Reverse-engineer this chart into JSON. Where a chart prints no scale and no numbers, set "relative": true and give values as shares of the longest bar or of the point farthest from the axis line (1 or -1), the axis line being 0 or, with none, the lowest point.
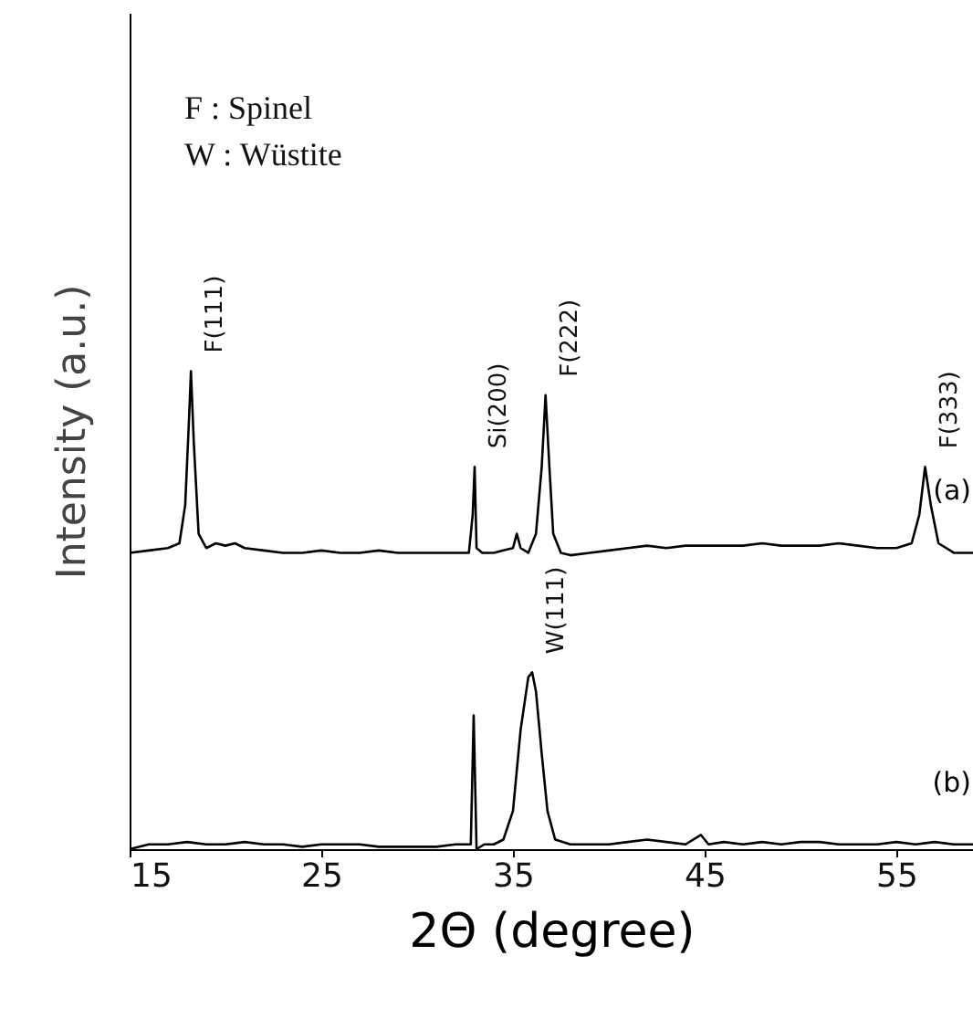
{
  "chart_data": {
    "type": "line",
    "relative": true,
    "xlabel": "2Θ (degree)",
    "ylabel": "Intensity (a.u.)",
    "xlim": [
      15,
      59
    ],
    "xticks": [
      15,
      25,
      35,
      45,
      55
    ],
    "series": [
      {
        "name": "(a)",
        "color": "#000000",
        "x": [
          15,
          16,
          17,
          17.6,
          17.9,
          18.1,
          18.2,
          18.35,
          18.6,
          19,
          19.5,
          20,
          20.5,
          21,
          22,
          23,
          24,
          25,
          26,
          27,
          28,
          29,
          30,
          31,
          32,
          32.7,
          32.9,
          33.0,
          33.1,
          33.4,
          34,
          34.5,
          35.0,
          35.2,
          35.4,
          35.8,
          36.2,
          36.5,
          36.7,
          36.9,
          37.1,
          37.5,
          38,
          39,
          40,
          41,
          42,
          43,
          44,
          45,
          46,
          47,
          48,
          49,
          50,
          51,
          52,
          53,
          54,
          55,
          55.8,
          56.2,
          56.5,
          56.8,
          57.2,
          58,
          59
        ],
        "values": [
          0.62,
          0.625,
          0.63,
          0.64,
          0.72,
          0.9,
          1.0,
          0.85,
          0.66,
          0.63,
          0.64,
          0.635,
          0.64,
          0.63,
          0.625,
          0.62,
          0.62,
          0.625,
          0.62,
          0.62,
          0.625,
          0.62,
          0.62,
          0.62,
          0.62,
          0.62,
          0.7,
          0.8,
          0.63,
          0.62,
          0.62,
          0.625,
          0.63,
          0.66,
          0.63,
          0.62,
          0.66,
          0.8,
          0.95,
          0.8,
          0.66,
          0.62,
          0.615,
          0.62,
          0.625,
          0.63,
          0.635,
          0.63,
          0.635,
          0.635,
          0.635,
          0.635,
          0.64,
          0.635,
          0.635,
          0.635,
          0.64,
          0.635,
          0.63,
          0.63,
          0.64,
          0.7,
          0.8,
          0.72,
          0.64,
          0.62,
          0.62
        ]
      },
      {
        "name": "(b)",
        "color": "#000000",
        "x": [
          15,
          16,
          17,
          18,
          19,
          20,
          21,
          22,
          23,
          24,
          25,
          26,
          27,
          28,
          29,
          30,
          31,
          32,
          32.8,
          32.95,
          33.1,
          33.5,
          34,
          34.5,
          35,
          35.4,
          35.8,
          36.0,
          36.2,
          36.5,
          36.8,
          37.2,
          38,
          39,
          40,
          41,
          42,
          43,
          44,
          44.8,
          45.2,
          46,
          47,
          48,
          49,
          50,
          51,
          52,
          53,
          54,
          55,
          56,
          57,
          58,
          59
        ],
        "values": [
          0.0,
          0.01,
          0.01,
          0.015,
          0.01,
          0.01,
          0.015,
          0.01,
          0.01,
          0.005,
          0.01,
          0.01,
          0.01,
          0.005,
          0.005,
          0.005,
          0.005,
          0.01,
          0.01,
          0.28,
          0.0,
          0.01,
          0.01,
          0.02,
          0.08,
          0.25,
          0.36,
          0.37,
          0.33,
          0.2,
          0.08,
          0.02,
          0.01,
          0.01,
          0.01,
          0.015,
          0.02,
          0.015,
          0.01,
          0.03,
          0.01,
          0.015,
          0.01,
          0.015,
          0.01,
          0.015,
          0.015,
          0.01,
          0.01,
          0.01,
          0.015,
          0.01,
          0.015,
          0.01,
          0.01
        ]
      }
    ],
    "annotations": [
      "F : Spinel",
      "W : Wüstite",
      {
        "text": "F(111)",
        "x": 18.2,
        "y": 1.0
      },
      {
        "text": "Si(200)",
        "x": 33.0,
        "y": 0.8
      },
      {
        "text": "F(222)",
        "x": 36.7,
        "y": 0.95
      },
      {
        "text": "F(333)",
        "x": 56.5,
        "y": 0.8
      },
      {
        "text": "W(111)",
        "x": 36.0,
        "y": 0.37
      }
    ]
  }
}
